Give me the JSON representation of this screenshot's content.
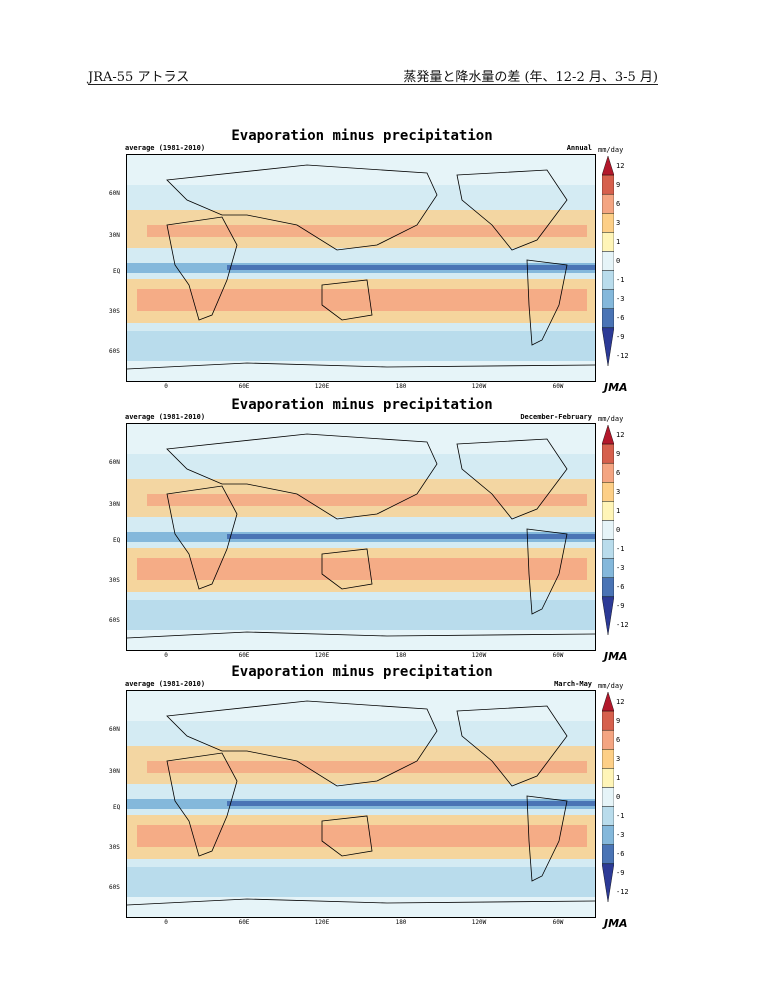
{
  "header": {
    "left": "JRA-55 アトラス",
    "right": "蒸発量と降水量の差 (年、12-2 月、3-5 月)"
  },
  "panels": [
    {
      "title": "Evaporation minus precipitation",
      "subtitle": "average (1981-2010)",
      "season": "Annual"
    },
    {
      "title": "Evaporation minus precipitation",
      "subtitle": "average (1981-2010)",
      "season": "December-February"
    },
    {
      "title": "Evaporation minus precipitation",
      "subtitle": "average (1981-2010)",
      "season": "March-May"
    }
  ],
  "lat_labels": [
    "60N",
    "30N",
    "EQ",
    "30S",
    "60S"
  ],
  "lon_labels": [
    "0",
    "60E",
    "120E",
    "180",
    "120W",
    "60W"
  ],
  "colorbar": {
    "unit": "mm/day",
    "ticks": [
      "12",
      "9",
      "6",
      "3",
      "1",
      "0",
      "-1",
      "-3",
      "-6",
      "-9",
      "-12"
    ],
    "colors": [
      "#b2182b",
      "#d6604d",
      "#f4a582",
      "#fdcf87",
      "#fff5b8",
      "#e6f4f8",
      "#b9dcec",
      "#84b8db",
      "#4a74b5",
      "#2c3a96"
    ]
  },
  "logo": "JMA"
}
